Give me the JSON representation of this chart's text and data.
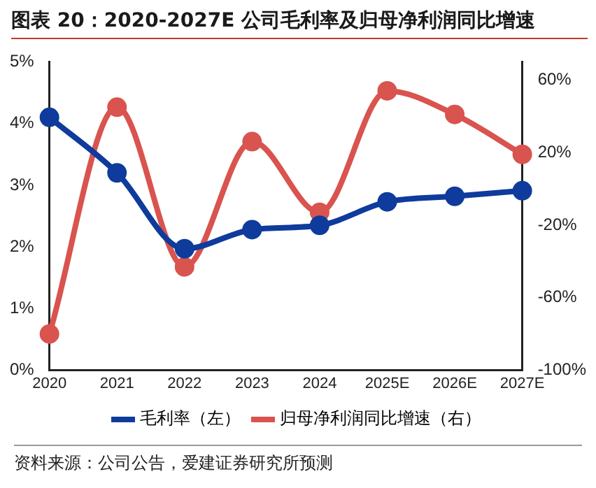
{
  "chart_data": {
    "type": "line",
    "title": "图表 20：2020-2027E 公司毛利率及归母净利润同比增速",
    "categories": [
      "2020",
      "2021",
      "2022",
      "2023",
      "2024",
      "2025E",
      "2026E",
      "2027E"
    ],
    "series": [
      {
        "name": "毛利率（左）",
        "color": "#0e3b9c",
        "values": [
          4.1,
          3.2,
          1.97,
          2.28,
          2.35,
          2.73,
          2.82,
          2.91
        ]
      },
      {
        "name": "归母净利润同比增速（右）",
        "color": "#d9534f",
        "axis": "y2",
        "values": [
          -80,
          45,
          -43,
          26,
          -13,
          54,
          41,
          19
        ]
      }
    ],
    "ylim": [
      0,
      5
    ],
    "yticks": [
      {
        "value": 0,
        "label": "0%"
      },
      {
        "value": 1,
        "label": "1%"
      },
      {
        "value": 2,
        "label": "2%"
      },
      {
        "value": 3,
        "label": "3%"
      },
      {
        "value": 4,
        "label": "4%"
      },
      {
        "value": 5,
        "label": "5%"
      }
    ],
    "y2lim": [
      -100,
      70
    ],
    "y2ticks": [
      {
        "value": -100,
        "label": "-100%"
      },
      {
        "value": -60,
        "label": "-60%"
      },
      {
        "value": -20,
        "label": "-20%"
      },
      {
        "value": 20,
        "label": "20%"
      },
      {
        "value": 60,
        "label": "60%"
      }
    ],
    "grid": false,
    "legend": "bottom",
    "marker": "circle",
    "line_style": "solid",
    "annotations": [
      "资料来源：公司公告，爱建证券研究所预测"
    ]
  }
}
